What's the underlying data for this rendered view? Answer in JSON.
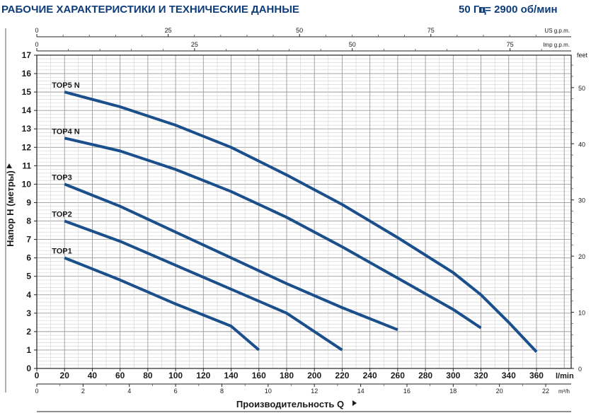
{
  "header": {
    "title": "РАБОЧИЕ ХАРАКТЕРИСТИКИ И ТЕХНИЧЕСКИЕ ДАННЫЕ",
    "frequency": "50 Гц",
    "speed": "n= 2900 об/мин"
  },
  "colors": {
    "curve": "#1a4f8b",
    "major_grid": "#9a9a9a",
    "minor_grid": "#d0d0d0",
    "header": "#0d3c78"
  },
  "chart_data": {
    "type": "line",
    "xlabel": "Производительность Q",
    "ylabel": "Напор H (метры)",
    "xlim": [
      0,
      385
    ],
    "ylim": [
      0,
      17
    ],
    "grid": true,
    "axes": {
      "bottom_lpm": {
        "unit": "l/min",
        "ticks": [
          0,
          20,
          40,
          60,
          80,
          100,
          120,
          140,
          160,
          180,
          200,
          220,
          240,
          260,
          280,
          300,
          320,
          340,
          360
        ]
      },
      "bottom_m3h": {
        "unit": "m³/h",
        "ticks": [
          0,
          2,
          4,
          6,
          8,
          10,
          12,
          14,
          16,
          18,
          20,
          22
        ]
      },
      "top_us": {
        "unit": "US g.p.m.",
        "ticks": [
          0,
          25,
          50,
          75
        ]
      },
      "top_imp": {
        "unit": "Imp g.p.m.",
        "ticks": [
          0,
          25,
          50,
          75
        ]
      },
      "left_m": {
        "ticks": [
          0,
          1,
          2,
          3,
          4,
          5,
          6,
          7,
          8,
          9,
          10,
          11,
          12,
          13,
          14,
          15,
          16,
          17
        ]
      },
      "right_feet": {
        "unit": "feet",
        "ticks": [
          0,
          10,
          20,
          30,
          40,
          50
        ]
      }
    },
    "series": [
      {
        "name": "TOP5 N",
        "x": [
          20,
          60,
          100,
          140,
          180,
          220,
          260,
          300,
          320,
          340,
          360
        ],
        "y": [
          15.0,
          14.2,
          13.2,
          12.0,
          10.5,
          8.9,
          7.1,
          5.2,
          4.0,
          2.5,
          0.9
        ]
      },
      {
        "name": "TOP4 N",
        "x": [
          20,
          60,
          100,
          140,
          180,
          220,
          260,
          300,
          320
        ],
        "y": [
          12.5,
          11.8,
          10.8,
          9.6,
          8.2,
          6.6,
          4.9,
          3.2,
          2.2
        ]
      },
      {
        "name": "TOP3",
        "x": [
          20,
          60,
          100,
          140,
          180,
          220,
          260
        ],
        "y": [
          10.0,
          8.8,
          7.4,
          6.0,
          4.6,
          3.3,
          2.1
        ]
      },
      {
        "name": "TOP2",
        "x": [
          20,
          60,
          100,
          140,
          180,
          220
        ],
        "y": [
          8.0,
          6.9,
          5.6,
          4.3,
          3.0,
          1.0
        ]
      },
      {
        "name": "TOP1",
        "x": [
          20,
          60,
          100,
          140,
          160
        ],
        "y": [
          6.0,
          4.8,
          3.5,
          2.3,
          1.0
        ]
      }
    ]
  }
}
